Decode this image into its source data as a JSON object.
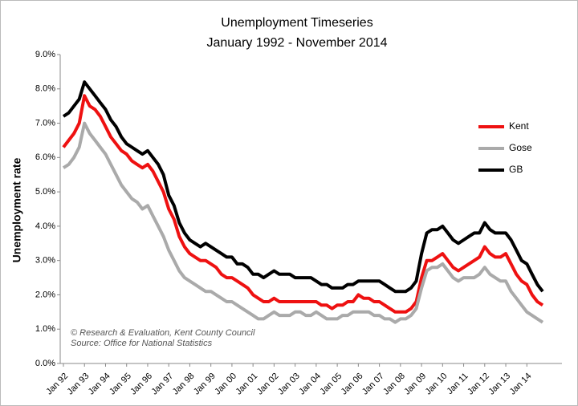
{
  "chart_data": {
    "type": "line",
    "title": "Unemployment Timeseries",
    "subtitle": "January 1992 - November 2014",
    "y_label": "Unemployment rate",
    "annotations": [
      "© Research & Evaluation, Kent County Council",
      "Source: Office for National Statistics"
    ],
    "legend": "right",
    "grid": false,
    "categories": [
      "Jan 92",
      null,
      null,
      null,
      "Jan 93",
      null,
      null,
      null,
      "Jan 94",
      null,
      null,
      null,
      "Jan 95",
      null,
      null,
      null,
      "Jan 96",
      null,
      null,
      null,
      "Jan 97",
      null,
      null,
      null,
      "Jan 98",
      null,
      null,
      null,
      "Jan 99",
      null,
      null,
      null,
      "Jan 00",
      null,
      null,
      null,
      "Jan 01",
      null,
      null,
      null,
      "Jan 02",
      null,
      null,
      null,
      "Jan 03",
      null,
      null,
      null,
      "Jan 04",
      null,
      null,
      null,
      "Jan 05",
      null,
      null,
      null,
      "Jan 06",
      null,
      null,
      null,
      "Jan 07",
      null,
      null,
      null,
      "Jan 08",
      null,
      null,
      null,
      "Jan 09",
      null,
      null,
      null,
      "Jan 10",
      null,
      null,
      null,
      "Jan 11",
      null,
      null,
      null,
      "Jan 12",
      null,
      null,
      null,
      "Jan 13",
      null,
      null,
      null,
      "Jan 14",
      null,
      null,
      null
    ],
    "ylim": [
      0,
      9
    ],
    "yticks": [
      {
        "value": 0,
        "label": "0.0%"
      },
      {
        "value": 1,
        "label": "1.0%"
      },
      {
        "value": 2,
        "label": "2.0%"
      },
      {
        "value": 3,
        "label": "3.0%"
      },
      {
        "value": 4,
        "label": "4.0%"
      },
      {
        "value": 5,
        "label": "5.0%"
      },
      {
        "value": 6,
        "label": "6.0%"
      },
      {
        "value": 7,
        "label": "7.0%"
      },
      {
        "value": 8,
        "label": "8.0%"
      },
      {
        "value": 9,
        "label": "9.0%"
      }
    ],
    "series": [
      {
        "name": "Kent",
        "color": "#ee1111",
        "values": [
          6.3,
          6.5,
          6.7,
          7.0,
          7.8,
          7.5,
          7.4,
          7.2,
          6.9,
          6.6,
          6.4,
          6.2,
          6.1,
          5.9,
          5.8,
          5.7,
          5.8,
          5.6,
          5.3,
          5.0,
          4.5,
          4.2,
          3.7,
          3.4,
          3.2,
          3.1,
          3.0,
          3.0,
          2.9,
          2.8,
          2.6,
          2.5,
          2.5,
          2.4,
          2.3,
          2.2,
          2.0,
          1.9,
          1.8,
          1.8,
          1.9,
          1.8,
          1.8,
          1.8,
          1.8,
          1.8,
          1.8,
          1.8,
          1.8,
          1.7,
          1.7,
          1.6,
          1.7,
          1.7,
          1.8,
          1.8,
          2.0,
          1.9,
          1.9,
          1.8,
          1.8,
          1.7,
          1.6,
          1.5,
          1.5,
          1.5,
          1.6,
          1.8,
          2.5,
          3.0,
          3.0,
          3.1,
          3.2,
          3.0,
          2.8,
          2.7,
          2.8,
          2.9,
          3.0,
          3.1,
          3.4,
          3.2,
          3.1,
          3.1,
          3.2,
          2.9,
          2.6,
          2.4,
          2.3,
          2.0,
          1.8,
          1.7
        ]
      },
      {
        "name": "Gose",
        "color": "#aaaaaa",
        "values": [
          5.7,
          5.8,
          6.0,
          6.3,
          7.0,
          6.7,
          6.5,
          6.3,
          6.1,
          5.8,
          5.5,
          5.2,
          5.0,
          4.8,
          4.7,
          4.5,
          4.6,
          4.3,
          4.0,
          3.7,
          3.3,
          3.0,
          2.7,
          2.5,
          2.4,
          2.3,
          2.2,
          2.1,
          2.1,
          2.0,
          1.9,
          1.8,
          1.8,
          1.7,
          1.6,
          1.5,
          1.4,
          1.3,
          1.3,
          1.4,
          1.5,
          1.4,
          1.4,
          1.4,
          1.5,
          1.5,
          1.4,
          1.4,
          1.5,
          1.4,
          1.3,
          1.3,
          1.3,
          1.4,
          1.4,
          1.5,
          1.5,
          1.5,
          1.5,
          1.4,
          1.4,
          1.3,
          1.3,
          1.2,
          1.3,
          1.3,
          1.4,
          1.6,
          2.2,
          2.7,
          2.8,
          2.8,
          2.9,
          2.7,
          2.5,
          2.4,
          2.5,
          2.5,
          2.5,
          2.6,
          2.8,
          2.6,
          2.5,
          2.4,
          2.4,
          2.1,
          1.9,
          1.7,
          1.5,
          1.4,
          1.3,
          1.2
        ]
      },
      {
        "name": "GB",
        "color": "#000000",
        "values": [
          7.2,
          7.3,
          7.5,
          7.7,
          8.2,
          8.0,
          7.8,
          7.6,
          7.4,
          7.1,
          6.9,
          6.6,
          6.4,
          6.3,
          6.2,
          6.1,
          6.2,
          6.0,
          5.8,
          5.5,
          4.9,
          4.6,
          4.1,
          3.8,
          3.6,
          3.5,
          3.4,
          3.5,
          3.4,
          3.3,
          3.2,
          3.1,
          3.1,
          2.9,
          2.9,
          2.8,
          2.6,
          2.6,
          2.5,
          2.6,
          2.7,
          2.6,
          2.6,
          2.6,
          2.5,
          2.5,
          2.5,
          2.5,
          2.4,
          2.3,
          2.3,
          2.2,
          2.2,
          2.2,
          2.3,
          2.3,
          2.4,
          2.4,
          2.4,
          2.4,
          2.4,
          2.3,
          2.2,
          2.1,
          2.1,
          2.1,
          2.2,
          2.4,
          3.2,
          3.8,
          3.9,
          3.9,
          4.0,
          3.8,
          3.6,
          3.5,
          3.6,
          3.7,
          3.8,
          3.8,
          4.1,
          3.9,
          3.8,
          3.8,
          3.8,
          3.6,
          3.3,
          3.0,
          2.9,
          2.6,
          2.3,
          2.1
        ]
      }
    ]
  }
}
